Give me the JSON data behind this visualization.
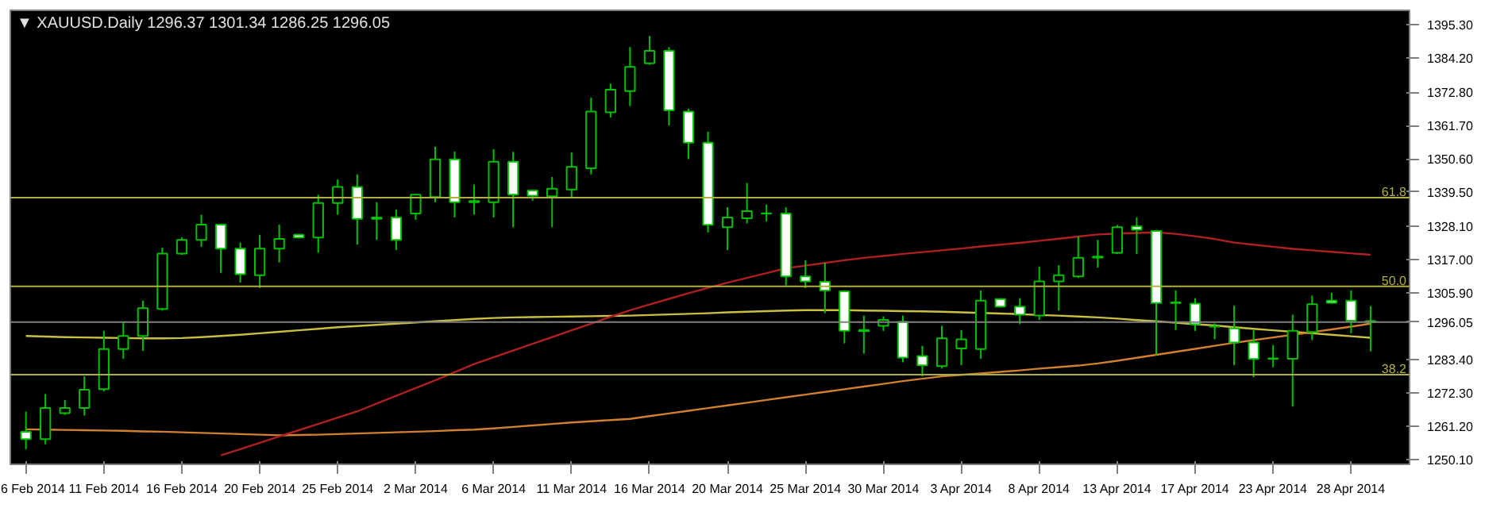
{
  "chart_data": {
    "type": "candlestick",
    "title": "▼ XAUUSD.Daily 1296.37 1301.34 1286.25 1296.05",
    "categories": [
      "6 Feb 2014",
      null,
      null,
      null,
      "11 Feb 2014",
      null,
      null,
      null,
      "16 Feb 2014",
      null,
      null,
      null,
      "20 Feb 2014",
      null,
      null,
      null,
      "25 Feb 2014",
      null,
      null,
      null,
      "2 Mar 2014",
      null,
      null,
      null,
      "6 Mar 2014",
      null,
      null,
      null,
      "11 Mar 2014",
      null,
      null,
      null,
      "16 Mar 2014",
      null,
      null,
      null,
      "20 Mar 2014",
      null,
      null,
      null,
      "25 Mar 2014",
      null,
      null,
      null,
      "30 Mar 2014",
      null,
      null,
      null,
      "3 Apr 2014",
      null,
      null,
      null,
      "8 Apr 2014",
      null,
      null,
      null,
      "13 Apr 2014",
      null,
      null,
      null,
      "17 Apr 2014",
      null,
      null,
      null,
      "23 Apr 2014",
      null,
      null,
      null,
      "28 Apr 2014",
      null
    ],
    "ohlc": [
      [
        1259.4,
        1266.1,
        1253.5,
        1256.9
      ],
      [
        1256.9,
        1272.0,
        1255.2,
        1267.3
      ],
      [
        1265.6,
        1270.0,
        1265.0,
        1267.3
      ],
      [
        1267.3,
        1277.9,
        1264.8,
        1273.4
      ],
      [
        1273.6,
        1293.1,
        1272.9,
        1287.0
      ],
      [
        1287.0,
        1296.1,
        1283.8,
        1291.4
      ],
      [
        1291.4,
        1303.2,
        1286.4,
        1300.7
      ],
      [
        1300.4,
        1320.9,
        1299.9,
        1318.9
      ],
      [
        1318.9,
        1324.3,
        1318.5,
        1323.5
      ],
      [
        1323.5,
        1331.9,
        1321.2,
        1328.6
      ],
      [
        1328.6,
        1328.9,
        1312.5,
        1320.6
      ],
      [
        1320.6,
        1322.6,
        1309.2,
        1312.0
      ],
      [
        1311.7,
        1325.2,
        1307.4,
        1320.6
      ],
      [
        1320.6,
        1328.6,
        1315.9,
        1323.8
      ],
      [
        1325.2,
        1325.5,
        1324.0,
        1324.3
      ],
      [
        1324.3,
        1338.6,
        1319.2,
        1335.8
      ],
      [
        1335.8,
        1343.7,
        1331.9,
        1341.2
      ],
      [
        1341.2,
        1345.4,
        1321.9,
        1330.5
      ],
      [
        1330.5,
        1336.1,
        1323.5,
        1331.0
      ],
      [
        1331.0,
        1333.6,
        1320.1,
        1323.5
      ],
      [
        1332.3,
        1338.9,
        1330.2,
        1338.6
      ],
      [
        1337.8,
        1354.6,
        1336.1,
        1350.4
      ],
      [
        1350.4,
        1353.0,
        1331.0,
        1336.1
      ],
      [
        1336.1,
        1342.0,
        1331.9,
        1336.5
      ],
      [
        1336.1,
        1353.8,
        1331.0,
        1349.6
      ],
      [
        1349.6,
        1352.9,
        1327.7,
        1338.6
      ],
      [
        1340.0,
        1340.3,
        1336.6,
        1338.3
      ],
      [
        1338.1,
        1344.5,
        1327.7,
        1340.6
      ],
      [
        1340.3,
        1352.7,
        1337.8,
        1347.9
      ],
      [
        1347.4,
        1371.0,
        1345.4,
        1366.4
      ],
      [
        1366.1,
        1375.7,
        1364.4,
        1373.7
      ],
      [
        1373.2,
        1387.9,
        1368.2,
        1381.3
      ],
      [
        1382.5,
        1391.6,
        1382.0,
        1386.7
      ],
      [
        1386.7,
        1387.9,
        1361.7,
        1366.8
      ],
      [
        1366.4,
        1367.3,
        1350.5,
        1356.0
      ],
      [
        1356.0,
        1359.7,
        1326.0,
        1328.5
      ],
      [
        1327.7,
        1334.4,
        1320.1,
        1331.0
      ],
      [
        1330.7,
        1342.5,
        1329.0,
        1333.1
      ],
      [
        1332.3,
        1335.3,
        1329.7,
        1332.4
      ],
      [
        1332.3,
        1334.4,
        1308.3,
        1311.3
      ],
      [
        1311.3,
        1316.7,
        1307.4,
        1309.6
      ],
      [
        1309.5,
        1315.9,
        1299.0,
        1306.6
      ],
      [
        1306.3,
        1306.6,
        1288.9,
        1293.1
      ],
      [
        1293.0,
        1298.2,
        1285.5,
        1293.4
      ],
      [
        1294.8,
        1297.9,
        1293.1,
        1296.8
      ],
      [
        1296.1,
        1298.2,
        1282.6,
        1284.2
      ],
      [
        1284.7,
        1288.1,
        1277.9,
        1281.6
      ],
      [
        1281.3,
        1294.8,
        1280.5,
        1290.6
      ],
      [
        1287.2,
        1293.4,
        1281.6,
        1290.3
      ],
      [
        1287.0,
        1306.6,
        1283.8,
        1303.2
      ],
      [
        1303.7,
        1304.0,
        1300.9,
        1301.2
      ],
      [
        1301.2,
        1304.0,
        1295.3,
        1298.5
      ],
      [
        1298.2,
        1314.6,
        1296.8,
        1309.6
      ],
      [
        1309.6,
        1315.0,
        1299.9,
        1311.7
      ],
      [
        1311.3,
        1324.6,
        1310.8,
        1317.5
      ],
      [
        1317.6,
        1323.5,
        1314.2,
        1317.9
      ],
      [
        1319.2,
        1328.5,
        1318.8,
        1327.7
      ],
      [
        1328.0,
        1331.1,
        1318.8,
        1326.9
      ],
      [
        1326.5,
        1326.8,
        1285.0,
        1302.4
      ],
      [
        1302.4,
        1306.6,
        1293.4,
        1302.6
      ],
      [
        1302.2,
        1304.0,
        1293.1,
        1295.3
      ],
      [
        1294.5,
        1295.6,
        1290.3,
        1294.6
      ],
      [
        1293.9,
        1301.5,
        1281.6,
        1289.2
      ],
      [
        1289.2,
        1293.4,
        1277.6,
        1283.7
      ],
      [
        1283.8,
        1288.4,
        1281.0,
        1283.9
      ],
      [
        1283.8,
        1298.5,
        1267.8,
        1293.1
      ],
      [
        1292.7,
        1304.9,
        1290.0,
        1302.0
      ],
      [
        1303.2,
        1305.8,
        1302.3,
        1302.5
      ],
      [
        1303.2,
        1306.6,
        1292.3,
        1296.5
      ],
      [
        1296.37,
        1301.34,
        1286.25,
        1296.05
      ]
    ],
    "color": "#00c000",
    "colors": [
      "#ffffff",
      "#000000",
      "#000000",
      "#000000",
      "#000000",
      "#000000",
      "#000000",
      "#000000",
      "#000000",
      "#000000",
      "#ffffff",
      "#ffffff",
      "#000000",
      "#000000",
      "#ffffff",
      "#000000",
      "#000000",
      "#ffffff",
      "#000000",
      "#ffffff",
      "#000000",
      "#000000",
      "#ffffff",
      "#000000",
      "#000000",
      "#ffffff",
      "#ffffff",
      "#000000",
      "#000000",
      "#000000",
      "#000000",
      "#000000",
      "#000000",
      "#ffffff",
      "#ffffff",
      "#ffffff",
      "#000000",
      "#000000",
      "#000000",
      "#ffffff",
      "#ffffff",
      "#ffffff",
      "#ffffff",
      "#000000",
      "#000000",
      "#ffffff",
      "#ffffff",
      "#000000",
      "#000000",
      "#000000",
      "#ffffff",
      "#ffffff",
      "#000000",
      "#000000",
      "#000000",
      "#000000",
      "#000000",
      "#ffffff",
      "#ffffff",
      "#000000",
      "#ffffff",
      "#000000",
      "#ffffff",
      "#ffffff",
      "#000000",
      "#000000",
      "#000000",
      "#ffffff",
      "#ffffff",
      "#ffffff"
    ],
    "series": [
      {
        "type": "line",
        "color": "#c8c040",
        "values": [
          1291.4,
          1291.2,
          1291.0,
          1290.9,
          1290.8,
          1290.7,
          1290.6,
          1290.6,
          1290.7,
          1291.0,
          1291.4,
          1291.8,
          1292.3,
          1292.8,
          1293.3,
          1293.8,
          1294.3,
          1294.7,
          1295.1,
          1295.5,
          1295.9,
          1296.3,
          1296.7,
          1297.1,
          1297.4,
          1297.6,
          1297.7,
          1297.8,
          1297.9,
          1298.0,
          1298.1,
          1298.2,
          1298.4,
          1298.6,
          1298.8,
          1299.0,
          1299.3,
          1299.5,
          1299.7,
          1299.9,
          1300.0,
          1300.0,
          1300.0,
          1299.9,
          1299.8,
          1299.7,
          1299.6,
          1299.5,
          1299.3,
          1299.1,
          1298.9,
          1298.7,
          1298.4,
          1298.2,
          1297.9,
          1297.6,
          1297.2,
          1296.7,
          1296.3,
          1295.8,
          1295.3,
          1294.9,
          1294.3,
          1293.8,
          1293.3,
          1292.8,
          1292.3,
          1291.8,
          1291.3,
          1290.8
        ]
      },
      {
        "type": "line",
        "color": "#d08030",
        "values": [
          1260.2,
          1260.1,
          1260.0,
          1259.9,
          1259.8,
          1259.7,
          1259.5,
          1259.4,
          1259.2,
          1259.0,
          1258.8,
          1258.6,
          1258.4,
          1258.2,
          1258.3,
          1258.4,
          1258.6,
          1258.8,
          1259.0,
          1259.2,
          1259.4,
          1259.6,
          1259.9,
          1260.1,
          1260.5,
          1261.0,
          1261.5,
          1262.0,
          1262.5,
          1262.9,
          1263.3,
          1263.7,
          1264.6,
          1265.5,
          1266.4,
          1267.3,
          1268.2,
          1269.1,
          1270.0,
          1270.9,
          1271.8,
          1272.7,
          1273.6,
          1274.5,
          1275.4,
          1276.3,
          1277.1,
          1277.9,
          1278.4,
          1278.9,
          1279.4,
          1279.9,
          1280.5,
          1281.0,
          1281.5,
          1282.2,
          1283.1,
          1284.1,
          1285.1,
          1286.1,
          1287.1,
          1288.1,
          1289.1,
          1290.0,
          1290.9,
          1291.8,
          1292.7,
          1293.6,
          1294.5,
          1295.5
        ]
      },
      {
        "type": "line",
        "color": "#b02020",
        "values": [
          null,
          null,
          null,
          null,
          null,
          null,
          null,
          null,
          null,
          null,
          1251.5,
          1253.6,
          1255.7,
          1257.8,
          1259.9,
          1262.0,
          1264.1,
          1266.2,
          1268.8,
          1271.4,
          1274.0,
          1276.6,
          1279.3,
          1282.0,
          1284.3,
          1286.5,
          1288.8,
          1291.0,
          1293.3,
          1295.5,
          1297.8,
          1300.0,
          1301.9,
          1303.8,
          1305.7,
          1307.5,
          1309.2,
          1310.8,
          1312.4,
          1314.0,
          1314.9,
          1315.8,
          1316.7,
          1317.5,
          1318.1,
          1318.8,
          1319.4,
          1320.0,
          1320.6,
          1321.3,
          1321.9,
          1322.5,
          1323.2,
          1323.9,
          1324.6,
          1325.3,
          1325.6,
          1325.8,
          1326.0,
          1325.5,
          1324.7,
          1323.8,
          1322.6,
          1321.9,
          1321.2,
          1320.5,
          1320.0,
          1319.5,
          1319.0,
          1318.5
        ]
      }
    ],
    "ylim": [
      1248.5,
      1400.2
    ],
    "yticks": [
      {
        "value": 1250.1,
        "label": "1250.10"
      },
      {
        "value": 1261.2,
        "label": "1261.20"
      },
      {
        "value": 1272.3,
        "label": "1272.30"
      },
      {
        "value": 1283.4,
        "label": "1283.40"
      },
      {
        "value": 1296.05,
        "label": "1296.05"
      },
      {
        "value": 1305.9,
        "label": "1305.90"
      },
      {
        "value": 1317.0,
        "label": "1317.00"
      },
      {
        "value": 1328.1,
        "label": "1328.10"
      },
      {
        "value": 1339.5,
        "label": "1339.50"
      },
      {
        "value": 1350.6,
        "label": "1350.60"
      },
      {
        "value": 1361.7,
        "label": "1361.70"
      },
      {
        "value": 1372.8,
        "label": "1372.80"
      },
      {
        "value": 1384.2,
        "label": "1384.20"
      },
      {
        "value": 1395.3,
        "label": "1395.30"
      }
    ],
    "ref_lines": [
      {
        "axis": "y",
        "value": 1337.6,
        "color": "#b0b040"
      },
      {
        "axis": "y",
        "value": 1308.0,
        "color": "#b0b040"
      },
      {
        "axis": "y",
        "value": 1278.5,
        "color": "#b0b040"
      },
      {
        "axis": "y",
        "value": 1296.05,
        "color": "#808080"
      }
    ],
    "annotations": [
      {
        "text": "61.8",
        "y": 1337.6
      },
      {
        "text": "50.0",
        "y": 1308.0
      },
      {
        "text": "38.2",
        "y": 1278.5
      }
    ],
    "grid": false
  }
}
